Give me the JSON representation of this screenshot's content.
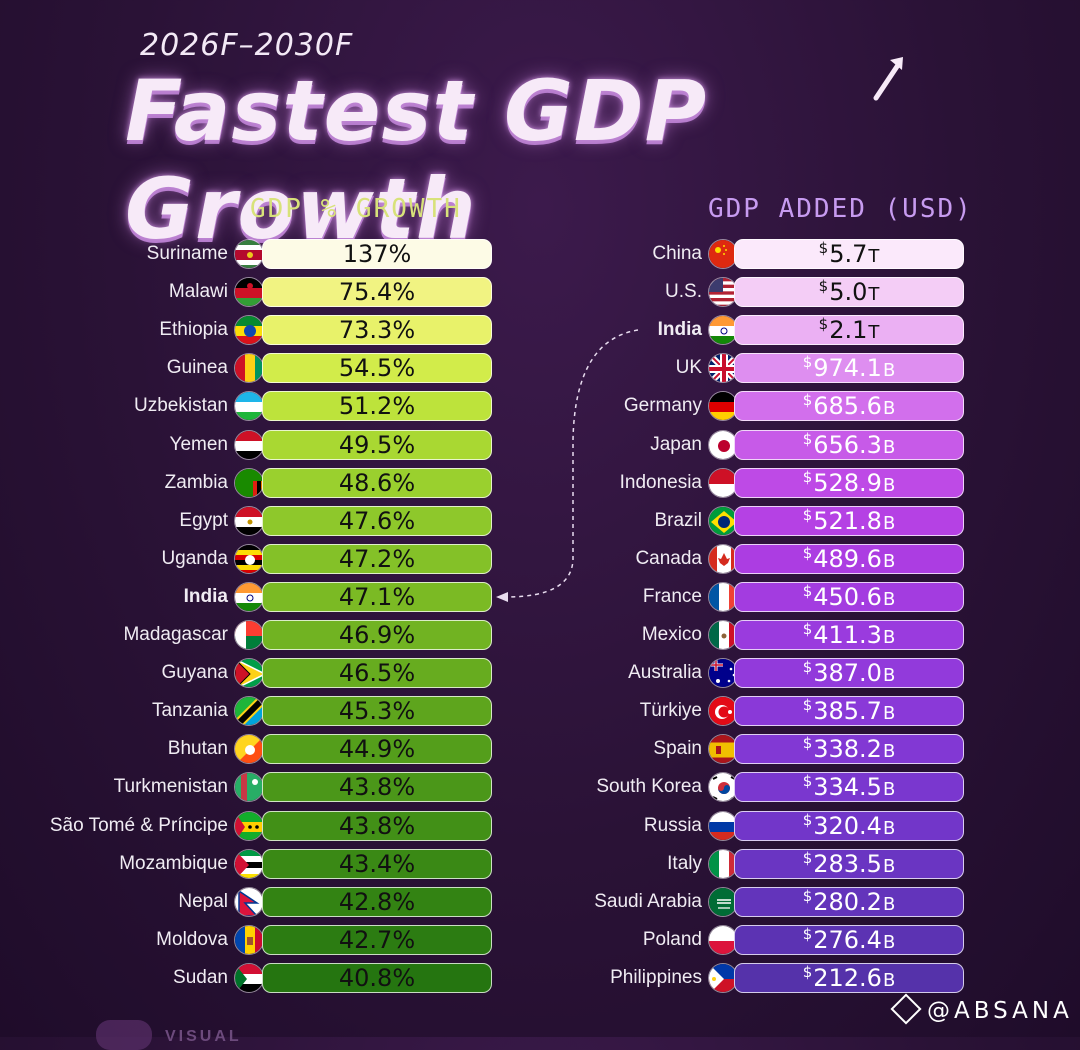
{
  "subtitle": "2026F–2030F",
  "title": "Fastest GDP Growth",
  "watermark": "@ABSANA",
  "logo_text": "VISUAL",
  "chart_data": [
    {
      "type": "bar",
      "title": "GDP % GROWTH",
      "highlight": "India",
      "rows": [
        {
          "country": "Suriname",
          "value": "137%",
          "num": 137,
          "flag": "suriname",
          "color": "#fdfbe6"
        },
        {
          "country": "Malawi",
          "value": "75.4%",
          "num": 75.4,
          "flag": "malawi",
          "color": "#f1f382"
        },
        {
          "country": "Ethiopia",
          "value": "73.3%",
          "num": 73.3,
          "flag": "ethiopia",
          "color": "#e8f26a"
        },
        {
          "country": "Guinea",
          "value": "54.5%",
          "num": 54.5,
          "flag": "guinea",
          "color": "#d2ec4a"
        },
        {
          "country": "Uzbekistan",
          "value": "51.2%",
          "num": 51.2,
          "flag": "uzbekistan",
          "color": "#bde33b"
        },
        {
          "country": "Yemen",
          "value": "49.5%",
          "num": 49.5,
          "flag": "yemen",
          "color": "#a9d832"
        },
        {
          "country": "Zambia",
          "value": "48.6%",
          "num": 48.6,
          "flag": "zambia",
          "color": "#9ad02e"
        },
        {
          "country": "Egypt",
          "value": "47.6%",
          "num": 47.6,
          "flag": "egypt",
          "color": "#8ec82b"
        },
        {
          "country": "Uganda",
          "value": "47.2%",
          "num": 47.2,
          "flag": "uganda",
          "color": "#84c128"
        },
        {
          "country": "India",
          "value": "47.1%",
          "num": 47.1,
          "flag": "india",
          "color": "#7bba24",
          "bold": true
        },
        {
          "country": "Madagascar",
          "value": "46.9%",
          "num": 46.9,
          "flag": "madagascar",
          "color": "#71b322"
        },
        {
          "country": "Guyana",
          "value": "46.5%",
          "num": 46.5,
          "flag": "guyana",
          "color": "#67ac1f"
        },
        {
          "country": "Tanzania",
          "value": "45.3%",
          "num": 45.3,
          "flag": "tanzania",
          "color": "#5ea51d"
        },
        {
          "country": "Bhutan",
          "value": "44.9%",
          "num": 44.9,
          "flag": "bhutan",
          "color": "#549e1b"
        },
        {
          "country": "Turkmenistan",
          "value": "43.8%",
          "num": 43.8,
          "flag": "turkmenistan",
          "color": "#4b9719"
        },
        {
          "country": "São Tomé & Príncipe",
          "value": "43.8%",
          "num": 43.8,
          "flag": "saotome",
          "color": "#429017"
        },
        {
          "country": "Mozambique",
          "value": "43.4%",
          "num": 43.4,
          "flag": "mozambique",
          "color": "#3a8915"
        },
        {
          "country": "Nepal",
          "value": "42.8%",
          "num": 42.8,
          "flag": "nepal",
          "color": "#338313"
        },
        {
          "country": "Moldova",
          "value": "42.7%",
          "num": 42.7,
          "flag": "moldova",
          "color": "#2c7c12"
        },
        {
          "country": "Sudan",
          "value": "40.8%",
          "num": 40.8,
          "flag": "sudan",
          "color": "#257510"
        }
      ]
    },
    {
      "type": "bar",
      "title": "GDP ADDED (USD)",
      "highlight": "India",
      "rows": [
        {
          "country": "China",
          "amount": "5.7",
          "unit": "T",
          "num": 5700,
          "flag": "china",
          "color": "#fbe9fb"
        },
        {
          "country": "U.S.",
          "amount": "5.0",
          "unit": "T",
          "num": 5000,
          "flag": "us",
          "color": "#f4cdf6"
        },
        {
          "country": "India",
          "amount": "2.1",
          "unit": "T",
          "num": 2100,
          "flag": "india",
          "color": "#ebb0f3",
          "bold": true
        },
        {
          "country": "UK",
          "amount": "974.1",
          "unit": "B",
          "num": 974.1,
          "flag": "uk",
          "color": "#de8ef0"
        },
        {
          "country": "Germany",
          "amount": "685.6",
          "unit": "B",
          "num": 685.6,
          "flag": "germany",
          "color": "#d26fec"
        },
        {
          "country": "Japan",
          "amount": "656.3",
          "unit": "B",
          "num": 656.3,
          "flag": "japan",
          "color": "#c75ae8"
        },
        {
          "country": "Indonesia",
          "amount": "528.9",
          "unit": "B",
          "num": 528.9,
          "flag": "indonesia",
          "color": "#be4ae6"
        },
        {
          "country": "Brazil",
          "amount": "521.8",
          "unit": "B",
          "num": 521.8,
          "flag": "brazil",
          "color": "#b541e4"
        },
        {
          "country": "Canada",
          "amount": "489.6",
          "unit": "B",
          "num": 489.6,
          "flag": "canada",
          "color": "#ac3de2"
        },
        {
          "country": "France",
          "amount": "450.6",
          "unit": "B",
          "num": 450.6,
          "flag": "france",
          "color": "#a33ce0"
        },
        {
          "country": "Mexico",
          "amount": "411.3",
          "unit": "B",
          "num": 411.3,
          "flag": "mexico",
          "color": "#9a3bde"
        },
        {
          "country": "Australia",
          "amount": "387.0",
          "unit": "B",
          "num": 387.0,
          "flag": "australia",
          "color": "#923adb"
        },
        {
          "country": "Türkiye",
          "amount": "385.7",
          "unit": "B",
          "num": 385.7,
          "flag": "turkiye",
          "color": "#8a39d8"
        },
        {
          "country": "Spain",
          "amount": "338.2",
          "unit": "B",
          "num": 338.2,
          "flag": "spain",
          "color": "#8238d4"
        },
        {
          "country": "South Korea",
          "amount": "334.5",
          "unit": "B",
          "num": 334.5,
          "flag": "southkorea",
          "color": "#7a37cf"
        },
        {
          "country": "Russia",
          "amount": "320.4",
          "unit": "B",
          "num": 320.4,
          "flag": "russia",
          "color": "#7236c9"
        },
        {
          "country": "Italy",
          "amount": "283.5",
          "unit": "B",
          "num": 283.5,
          "flag": "italy",
          "color": "#6a35c2"
        },
        {
          "country": "Saudi Arabia",
          "amount": "280.2",
          "unit": "B",
          "num": 280.2,
          "flag": "saudi",
          "color": "#6334bb"
        },
        {
          "country": "Poland",
          "amount": "276.4",
          "unit": "B",
          "num": 276.4,
          "flag": "poland",
          "color": "#5c33b3"
        },
        {
          "country": "Philippines",
          "amount": "212.6",
          "unit": "B",
          "num": 212.6,
          "flag": "philippines",
          "color": "#5532aa"
        }
      ]
    }
  ]
}
